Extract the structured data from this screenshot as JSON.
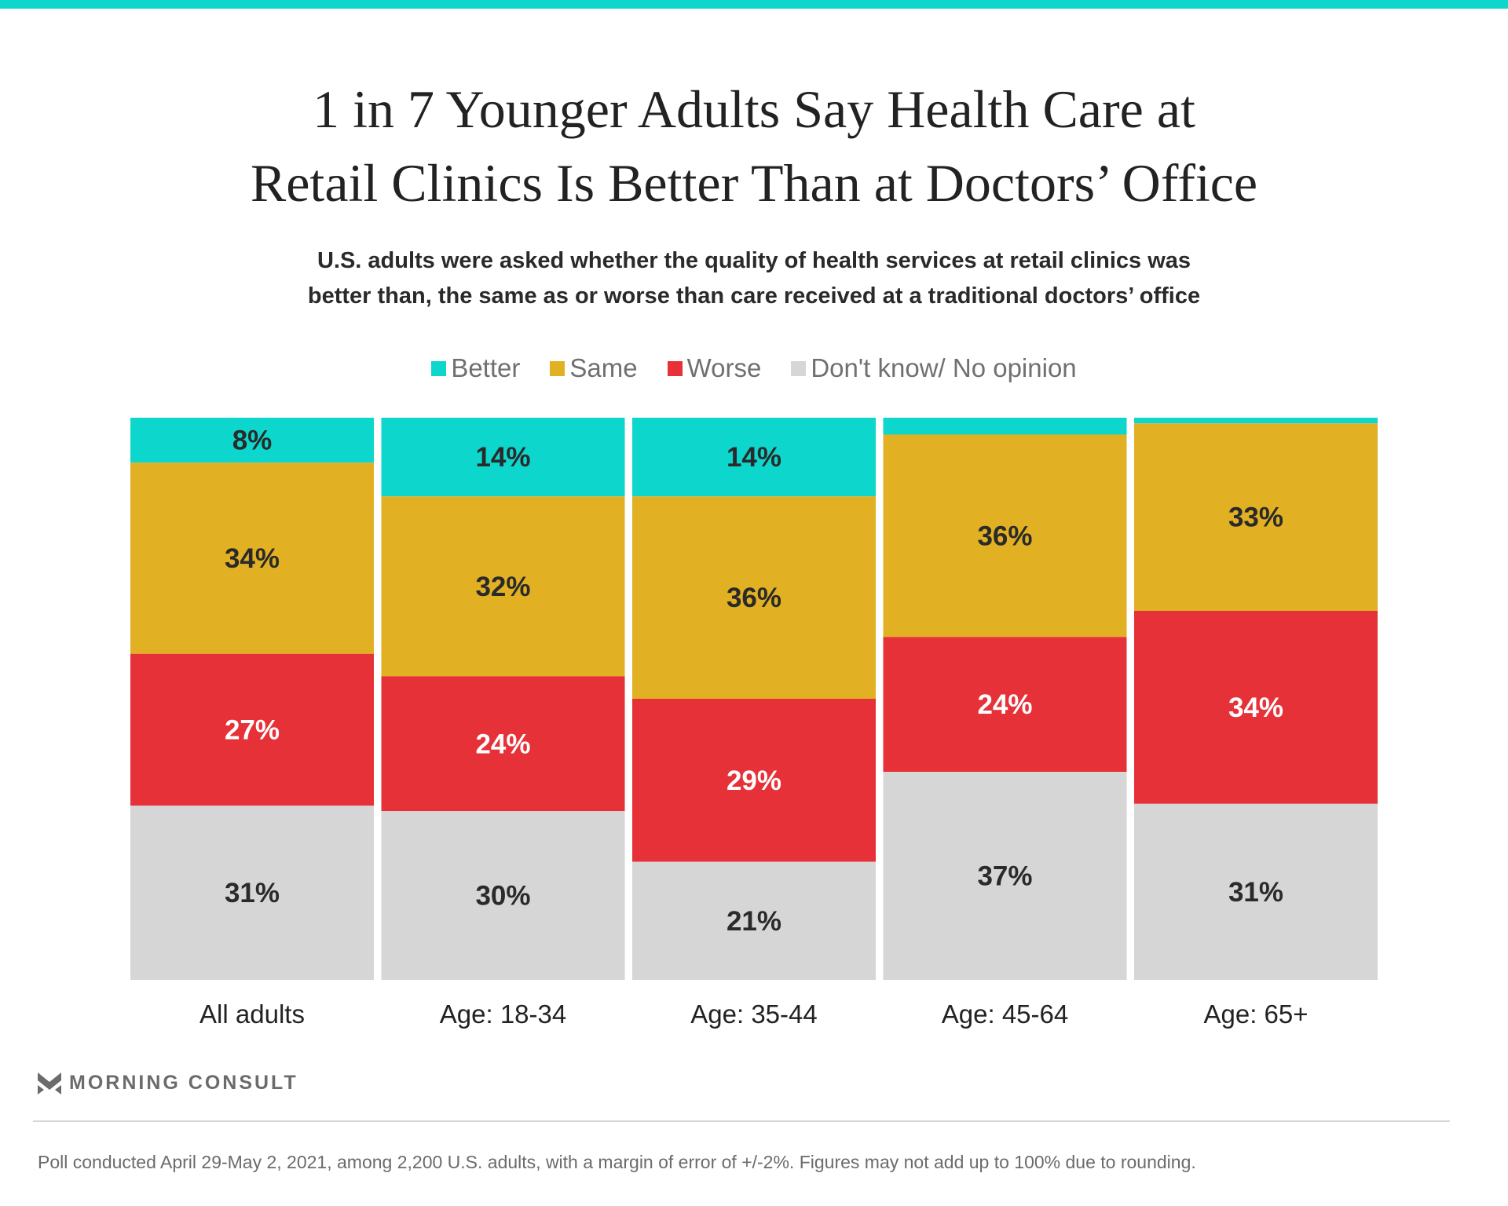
{
  "header": {
    "title_line1": "1 in 7 Younger Adults Say Health Care at",
    "title_line2": "Retail Clinics Is Better Than at Doctors’ Office",
    "subtitle_line1": "U.S. adults were asked whether the quality of health services at retail clinics was",
    "subtitle_line2": "better than, the same as or worse than care received at a traditional doctors’ office"
  },
  "colors": {
    "accent_bar": "#0dd6cc",
    "better": "#0dd6cc",
    "same": "#e1b023",
    "worse": "#e73138",
    "dont_know": "#d6d6d6"
  },
  "chart_data": {
    "type": "bar",
    "stacked": true,
    "normalized": true,
    "title": "1 in 7 Younger Adults Say Health Care at Retail Clinics Is Better Than at Doctors’ Office",
    "categories": [
      "All adults",
      "Age: 18-34",
      "Age: 35-44",
      "Age: 45-64",
      "Age: 65+"
    ],
    "series": [
      {
        "name": "Better",
        "color": "#0dd6cc",
        "values": [
          8,
          14,
          14,
          3,
          1
        ],
        "labels": [
          "8%",
          "14%",
          "14%",
          "",
          ""
        ],
        "label_color": "#2a2a2a"
      },
      {
        "name": "Same",
        "color": "#e1b023",
        "values": [
          34,
          32,
          36,
          36,
          33
        ],
        "labels": [
          "34%",
          "32%",
          "36%",
          "36%",
          "33%"
        ],
        "label_color": "#2a2a2a"
      },
      {
        "name": "Worse",
        "color": "#e73138",
        "values": [
          27,
          24,
          29,
          24,
          34
        ],
        "labels": [
          "27%",
          "24%",
          "29%",
          "24%",
          "34%"
        ],
        "label_color": "#ffffff"
      },
      {
        "name": "Don't know/ No opinion",
        "color": "#d6d6d6",
        "values": [
          31,
          30,
          21,
          37,
          31
        ],
        "labels": [
          "31%",
          "30%",
          "21%",
          "37%",
          "31%"
        ],
        "label_color": "#2a2a2a"
      }
    ],
    "legend_position": "top-center",
    "xlabel": "",
    "ylabel": "",
    "grid": false
  },
  "brand": {
    "name": "MORNING CONSULT",
    "icon": "morning-consult-chevron-icon"
  },
  "footnote": "Poll conducted April 29-May 2, 2021, among 2,200 U.S. adults, with a margin of error of +/-2%. Figures may not add up to 100% due to rounding."
}
